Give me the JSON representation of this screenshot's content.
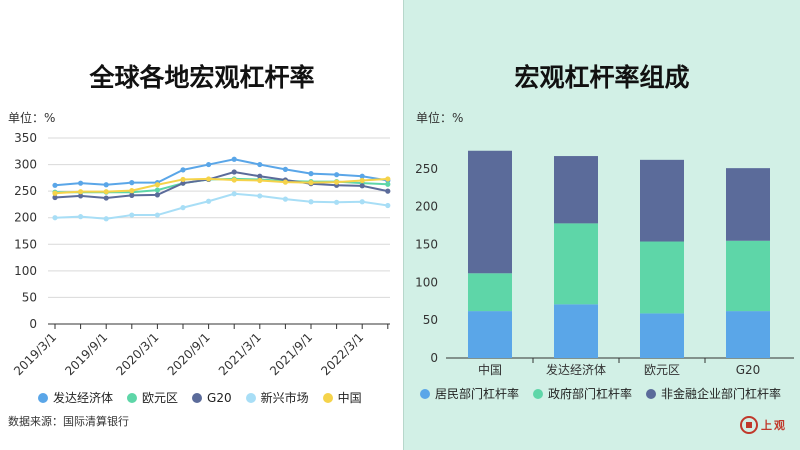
{
  "left": {
    "title": "全球各地宏观杠杆率",
    "unit": "单位：%",
    "source": "数据来源：国际清算银行"
  },
  "right": {
    "title": "宏观杠杆率组成",
    "unit": "单位：%"
  },
  "logo": {
    "text": "上观"
  },
  "colors": {
    "dev": "#5aa6e8",
    "euro": "#5ed6a8",
    "g20": "#5b6b9a",
    "em": "#a8def6",
    "china": "#f5d34a",
    "household": "#5aa6e8",
    "government": "#5ed6a8",
    "nonfinancial": "#5b6b9a"
  },
  "chart_data": [
    {
      "type": "line",
      "title": "全球各地宏观杠杆率",
      "ylabel": "单位：%",
      "ylim": [
        0,
        350
      ],
      "yticks": [
        "0",
        "50",
        "100",
        "150",
        "200",
        "250",
        "300",
        "350"
      ],
      "x": [
        "2019/3/1",
        "2019/6/1",
        "2019/9/1",
        "2019/12/1",
        "2020/3/1",
        "2020/6/1",
        "2020/9/1",
        "2020/12/1",
        "2021/3/1",
        "2021/6/1",
        "2021/9/1",
        "2021/12/1",
        "2022/3/1",
        "2022/6/1"
      ],
      "xtick_labels": [
        "2019/3/1",
        "2019/9/1",
        "2020/3/1",
        "2020/9/1",
        "2021/3/1",
        "2021/9/1",
        "2022/3/1"
      ],
      "grid": true,
      "legend_position": "bottom",
      "series": [
        {
          "name": "发达经济体",
          "color": "#5aa6e8",
          "values": [
            261,
            265,
            262,
            266,
            266,
            290,
            300,
            310,
            300,
            291,
            283,
            281,
            278,
            270
          ]
        },
        {
          "name": "欧元区",
          "color": "#5ed6a8",
          "values": [
            248,
            248,
            248,
            248,
            252,
            265,
            272,
            273,
            272,
            269,
            268,
            268,
            265,
            263
          ]
        },
        {
          "name": "G20",
          "color": "#5b6b9a",
          "values": [
            238,
            241,
            237,
            242,
            243,
            265,
            272,
            286,
            278,
            271,
            264,
            261,
            260,
            250
          ]
        },
        {
          "name": "新兴市场",
          "color": "#a8def6",
          "values": [
            200,
            202,
            198,
            205,
            205,
            219,
            231,
            245,
            241,
            235,
            230,
            229,
            230,
            223
          ]
        },
        {
          "name": "中国",
          "color": "#f5d34a",
          "values": [
            246,
            249,
            249,
            251,
            262,
            272,
            273,
            271,
            270,
            267,
            266,
            267,
            270,
            273
          ]
        }
      ]
    },
    {
      "type": "bar",
      "stacked": true,
      "title": "宏观杠杆率组成",
      "ylabel": "单位：%",
      "ylim": [
        0,
        275
      ],
      "yticks": [
        "0",
        "50",
        "100",
        "150",
        "200",
        "250"
      ],
      "categories": [
        "中国",
        "发达经济体",
        "欧元区",
        "G20"
      ],
      "grid": false,
      "legend_position": "bottom",
      "series": [
        {
          "name": "居民部门杠杆率",
          "color": "#5aa6e8",
          "values": [
            62,
            71,
            59,
            62
          ]
        },
        {
          "name": "政府部门杠杆率",
          "color": "#5ed6a8",
          "values": [
            50,
            107,
            95,
            93
          ]
        },
        {
          "name": "非金融企业部门杠杆率",
          "color": "#5b6b9a",
          "values": [
            162,
            89,
            108,
            96
          ]
        }
      ]
    }
  ]
}
